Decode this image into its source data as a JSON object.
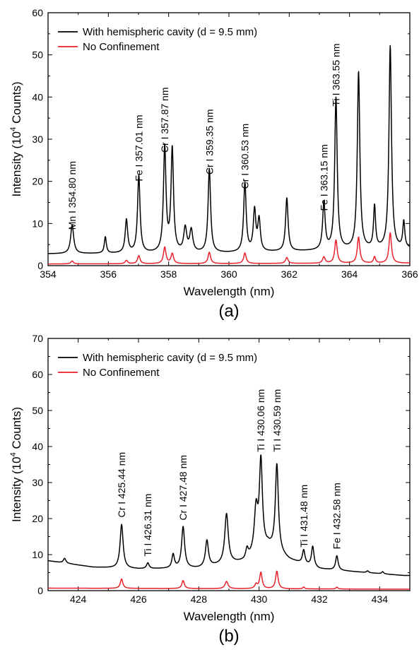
{
  "chart_data": [
    {
      "type": "line",
      "panel_label": "(a)",
      "xlabel": "Wavelength (nm)",
      "ylabel_main": "Intensity (10",
      "ylabel_sup": "4",
      "ylabel_tail": " Counts)",
      "xlim": [
        354,
        366
      ],
      "ylim": [
        0,
        60
      ],
      "xticks": [
        354,
        356,
        358,
        360,
        362,
        364,
        366
      ],
      "yticks": [
        0,
        10,
        20,
        30,
        40,
        50,
        60
      ],
      "grid": false,
      "legend_position": "top-left",
      "series": [
        {
          "name": "With hemispheric cavity (d = 9.5 mm)",
          "color": "#000000",
          "baseline": [
            [
              354.0,
              2.8
            ],
            [
              360.0,
              3.0
            ],
            [
              366.0,
              4.0
            ]
          ],
          "peaks": [
            [
              354.8,
              6.8,
              0.06
            ],
            [
              355.9,
              3.9,
              0.04
            ],
            [
              356.6,
              7.9,
              0.05
            ],
            [
              357.01,
              18.3,
              0.05
            ],
            [
              357.87,
              25.0,
              0.05
            ],
            [
              358.12,
              24.4,
              0.05
            ],
            [
              358.55,
              5.7,
              0.06
            ],
            [
              358.75,
              5.2,
              0.06
            ],
            [
              359.35,
              19.9,
              0.05
            ],
            [
              360.53,
              16.4,
              0.05
            ],
            [
              360.85,
              9.7,
              0.05
            ],
            [
              361.0,
              7.5,
              0.05
            ],
            [
              361.92,
              12.6,
              0.05
            ],
            [
              363.15,
              11.2,
              0.05
            ],
            [
              363.55,
              36.0,
              0.05
            ],
            [
              364.3,
              42.1,
              0.05
            ],
            [
              364.83,
              10.0,
              0.04
            ],
            [
              365.35,
              48.1,
              0.05
            ],
            [
              365.8,
              6.3,
              0.04
            ]
          ]
        },
        {
          "name": "No Confinement",
          "color": "#e8212b",
          "baseline": [
            [
              354.0,
              0.4
            ],
            [
              366.0,
              0.6
            ]
          ],
          "peaks": [
            [
              354.8,
              0.7,
              0.05
            ],
            [
              356.6,
              0.8,
              0.05
            ],
            [
              357.01,
              1.9,
              0.05
            ],
            [
              357.87,
              3.9,
              0.05
            ],
            [
              358.12,
              2.4,
              0.05
            ],
            [
              359.35,
              2.7,
              0.05
            ],
            [
              360.53,
              2.5,
              0.05
            ],
            [
              361.92,
              1.4,
              0.05
            ],
            [
              363.15,
              1.5,
              0.05
            ],
            [
              363.55,
              5.5,
              0.05
            ],
            [
              364.3,
              6.2,
              0.05
            ],
            [
              364.83,
              1.5,
              0.04
            ],
            [
              365.35,
              7.2,
              0.05
            ]
          ]
        }
      ],
      "annotations": [
        {
          "text": "Mn I 354.80 nm",
          "x": 354.8,
          "y": 8.5
        },
        {
          "text": "Fe I 357.01 nm",
          "x": 357.01,
          "y": 20.0
        },
        {
          "text": "Cr I 357.87 nm",
          "x": 357.87,
          "y": 26.8
        },
        {
          "text": "Cr I 359.35 nm",
          "x": 359.35,
          "y": 21.6
        },
        {
          "text": "Cr I 360.53 nm",
          "x": 360.53,
          "y": 18.2
        },
        {
          "text": "Fe I 363.15 nm",
          "x": 363.15,
          "y": 13.0
        },
        {
          "text": "Ti I 363.55 nm",
          "x": 363.55,
          "y": 37.8
        }
      ]
    },
    {
      "type": "line",
      "panel_label": "(b)",
      "xlabel": "Wavelength (nm)",
      "ylabel_main": "Intensity (10",
      "ylabel_sup": "4",
      "ylabel_tail": " Counts)",
      "xlim": [
        423,
        435
      ],
      "ylim": [
        0,
        70
      ],
      "xticks": [
        424,
        426,
        428,
        430,
        432,
        434
      ],
      "yticks": [
        0,
        10,
        20,
        30,
        40,
        50,
        60,
        70
      ],
      "grid": false,
      "legend_position": "top-left",
      "series": [
        {
          "name": "With hemispheric cavity (d = 9.5 mm)",
          "color": "#000000",
          "baseline": [
            [
              423.0,
              8.3
            ],
            [
              424.5,
              6.5
            ],
            [
              426.0,
              6.0
            ],
            [
              428.0,
              6.2
            ],
            [
              429.5,
              8.0
            ],
            [
              430.3,
              12.0
            ],
            [
              431.0,
              8.5
            ],
            [
              432.0,
              6.0
            ],
            [
              434.8,
              4.2
            ]
          ],
          "peaks": [
            [
              423.55,
              1.3,
              0.05
            ],
            [
              425.44,
              12.2,
              0.06
            ],
            [
              426.31,
              1.6,
              0.05
            ],
            [
              427.15,
              3.8,
              0.05
            ],
            [
              427.48,
              11.5,
              0.06
            ],
            [
              428.27,
              7.3,
              0.06
            ],
            [
              428.92,
              13.9,
              0.07
            ],
            [
              429.6,
              2.6,
              0.05
            ],
            [
              429.9,
              12.0,
              0.07
            ],
            [
              430.06,
              24.6,
              0.06
            ],
            [
              430.59,
              24.3,
              0.06
            ],
            [
              431.48,
              3.8,
              0.05
            ],
            [
              431.78,
              5.6,
              0.05
            ],
            [
              432.58,
              4.0,
              0.05
            ],
            [
              433.6,
              0.5,
              0.04
            ],
            [
              434.1,
              0.6,
              0.04
            ]
          ]
        },
        {
          "name": "No Confinement",
          "color": "#e8212b",
          "baseline": [
            [
              423.0,
              0.7
            ],
            [
              435.0,
              0.4
            ]
          ],
          "peaks": [
            [
              425.44,
              2.6,
              0.05
            ],
            [
              427.48,
              2.2,
              0.05
            ],
            [
              428.92,
              2.0,
              0.06
            ],
            [
              429.9,
              1.2,
              0.05
            ],
            [
              430.06,
              4.5,
              0.05
            ],
            [
              430.59,
              4.9,
              0.05
            ],
            [
              431.48,
              0.5,
              0.04
            ],
            [
              432.58,
              0.5,
              0.04
            ]
          ]
        }
      ],
      "annotations": [
        {
          "text": "Cr I 425.44 nm",
          "x": 425.44,
          "y": 20.3
        },
        {
          "text": "Ti I 426.31 nm",
          "x": 426.31,
          "y": 9.5
        },
        {
          "text": "Cr I 427.48 nm",
          "x": 427.48,
          "y": 19.5
        },
        {
          "text": "Ti I 430.06 nm",
          "x": 430.06,
          "y": 38.5
        },
        {
          "text": "Ti I 430.59 nm",
          "x": 430.59,
          "y": 38.5
        },
        {
          "text": "Ti I 431.48 nm",
          "x": 431.48,
          "y": 12.0
        },
        {
          "text": "Fe I 432.58 nm",
          "x": 432.58,
          "y": 11.5
        }
      ]
    }
  ]
}
